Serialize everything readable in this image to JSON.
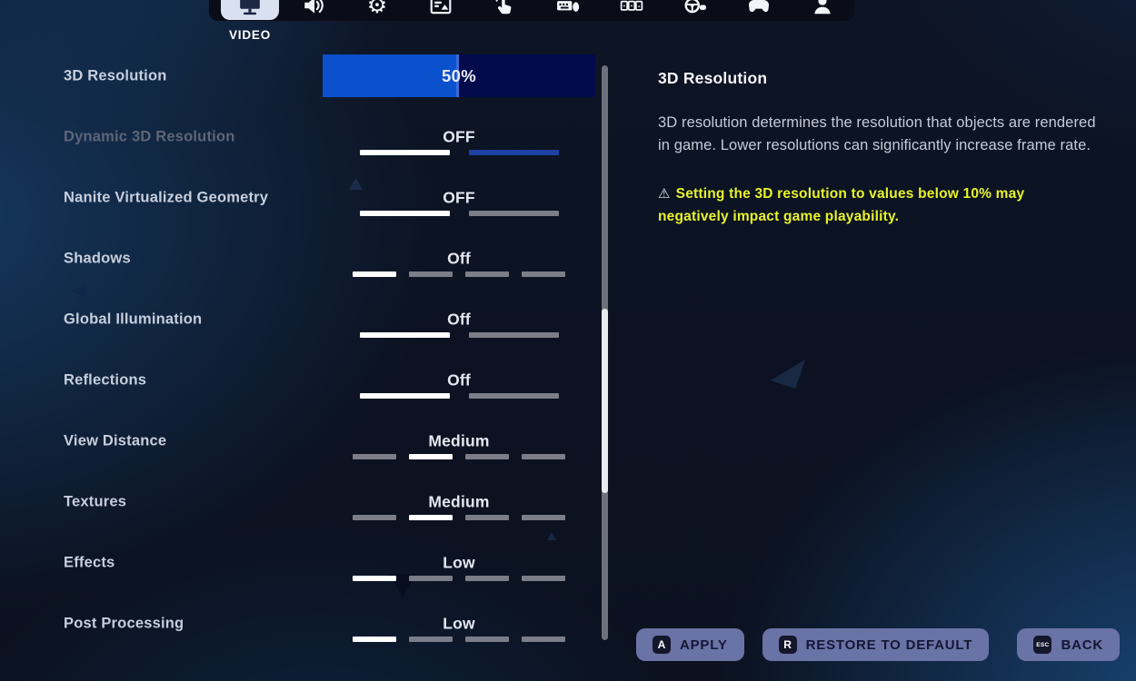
{
  "tab_bar": {
    "selected_label": "VIDEO",
    "tabs": [
      {
        "id": "video",
        "icon": "monitor-icon",
        "selected": true
      },
      {
        "id": "audio",
        "icon": "speaker-icon",
        "selected": false
      },
      {
        "id": "game",
        "icon": "gear-icon",
        "selected": false
      },
      {
        "id": "accessibility",
        "icon": "subtitles-icon",
        "selected": false
      },
      {
        "id": "touch",
        "icon": "touch-hand-icon",
        "selected": false
      },
      {
        "id": "keyboard-mouse",
        "icon": "keyboard-mouse-icon",
        "selected": false
      },
      {
        "id": "keybinds",
        "icon": "keybinds-icon",
        "selected": false
      },
      {
        "id": "wheel",
        "icon": "racing-wheel-icon",
        "selected": false
      },
      {
        "id": "controller",
        "icon": "gamepad-icon",
        "selected": false
      },
      {
        "id": "account",
        "icon": "person-icon",
        "selected": false
      }
    ]
  },
  "settings": [
    {
      "label": "3D Resolution",
      "value": "50%",
      "control": "slider",
      "percent": 50,
      "disabled": false
    },
    {
      "label": "Dynamic 3D Resolution",
      "value": "OFF",
      "control": "segments",
      "segments": [
        "selected",
        "accent"
      ],
      "disabled": true
    },
    {
      "label": "Nanite Virtualized Geometry",
      "value": "OFF",
      "control": "segments",
      "segments": [
        "selected",
        "idle"
      ],
      "disabled": false
    },
    {
      "label": "Shadows",
      "value": "Off",
      "control": "segments",
      "segments": [
        "selected",
        "idle",
        "idle",
        "idle"
      ],
      "disabled": false
    },
    {
      "label": "Global Illumination",
      "value": "Off",
      "control": "segments",
      "segments": [
        "selected",
        "idle"
      ],
      "disabled": false
    },
    {
      "label": "Reflections",
      "value": "Off",
      "control": "segments",
      "segments": [
        "selected",
        "idle"
      ],
      "disabled": false
    },
    {
      "label": "View Distance",
      "value": "Medium",
      "control": "segments",
      "segments": [
        "idle",
        "selected",
        "idle",
        "idle"
      ],
      "disabled": false
    },
    {
      "label": "Textures",
      "value": "Medium",
      "control": "segments",
      "segments": [
        "idle",
        "selected",
        "idle",
        "idle"
      ],
      "disabled": false
    },
    {
      "label": "Effects",
      "value": "Low",
      "control": "segments",
      "segments": [
        "selected",
        "idle",
        "idle",
        "idle"
      ],
      "disabled": false
    },
    {
      "label": "Post Processing",
      "value": "Low",
      "control": "segments",
      "segments": [
        "selected",
        "idle",
        "idle",
        "idle"
      ],
      "disabled": false
    }
  ],
  "detail": {
    "title": "3D Resolution",
    "description": "3D resolution determines the resolution that objects are rendered in game. Lower resolutions can significantly increase frame rate.",
    "warning_icon": "warning-triangle-icon",
    "warning": "Setting the 3D resolution to values below 10% may negatively impact game playability."
  },
  "footer": {
    "buttons": [
      {
        "key": "A",
        "label": "APPLY"
      },
      {
        "key": "R",
        "label": "RESTORE TO DEFAULT"
      },
      {
        "key": "ESC",
        "label": "BACK"
      }
    ]
  },
  "colors": {
    "slider_fill": "#0b51cd",
    "slider_track": "#030b4d",
    "segment_selected": "#ffffff",
    "segment_idle": "#7b7e88",
    "segment_accent": "#1e41a4",
    "warning_text": "#e8f32a",
    "button_bg": "#6a73a6"
  }
}
